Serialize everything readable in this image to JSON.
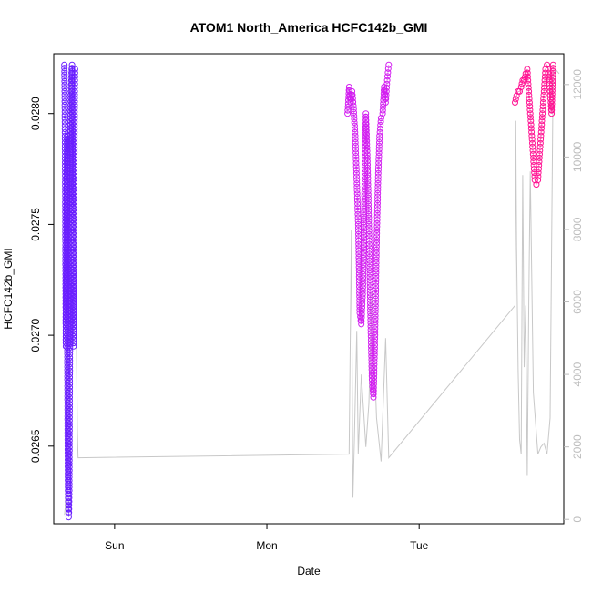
{
  "chart_data": {
    "type": "scatter",
    "title": "ATOM1 North_America HCFC142b_GMI",
    "xlabel": "Date",
    "ylabel": "HCFC142b_GMI",
    "x_unit": "days since start of Sun",
    "xlim": [
      -0.4,
      2.95
    ],
    "ylim": [
      0.02615,
      0.02827
    ],
    "y2lim": [
      -120,
      12850
    ],
    "x_ticks": [
      {
        "label": "Sun",
        "value": 0
      },
      {
        "label": "Mon",
        "value": 1
      },
      {
        "label": "Tue",
        "value": 2
      }
    ],
    "y_ticks": [
      {
        "label": "0.0265",
        "value": 0.0265
      },
      {
        "label": "0.0270",
        "value": 0.027
      },
      {
        "label": "0.0275",
        "value": 0.0275
      },
      {
        "label": "0.0280",
        "value": 0.028
      }
    ],
    "y2_ticks": [
      {
        "label": "0",
        "value": 0
      },
      {
        "label": "2000",
        "value": 2000
      },
      {
        "label": "4000",
        "value": 4000
      },
      {
        "label": "6000",
        "value": 6000
      },
      {
        "label": "8000",
        "value": 8000
      },
      {
        "label": "10000",
        "value": 10000
      },
      {
        "label": "12000",
        "value": 12000
      }
    ],
    "grid": false,
    "legend": "none",
    "series": [
      {
        "color": "#6a1fff",
        "marker": "open-circle",
        "axis": "left",
        "x": [
          -0.33,
          -0.328,
          -0.326,
          -0.324,
          -0.322,
          -0.32,
          -0.318,
          -0.316,
          -0.314,
          -0.312,
          -0.31,
          -0.308,
          -0.306,
          -0.304,
          -0.302,
          -0.3,
          -0.298,
          -0.296,
          -0.294,
          -0.292,
          -0.29,
          -0.288,
          -0.286,
          -0.284,
          -0.282,
          -0.28,
          -0.278,
          -0.276,
          -0.274,
          -0.272,
          -0.27,
          -0.268,
          -0.266,
          -0.264,
          -0.262,
          -0.26
        ],
        "y": [
          0.02822,
          0.0281,
          0.0279,
          0.0276,
          0.0272,
          0.02695,
          0.0271,
          0.0274,
          0.0277,
          0.0279,
          0.0268,
          0.0265,
          0.0263,
          0.02625,
          0.02618,
          0.0262,
          0.0263,
          0.0266,
          0.0269,
          0.0272,
          0.0276,
          0.02795,
          0.0281,
          0.02815,
          0.0282,
          0.02822,
          0.028,
          0.0277,
          0.0274,
          0.0271,
          0.02695,
          0.0272,
          0.0276,
          0.0279,
          0.0281,
          0.0282
        ]
      },
      {
        "color": "#d21ff0",
        "marker": "open-circle",
        "axis": "left",
        "x": [
          1.53,
          1.54,
          1.55,
          1.56,
          1.57,
          1.58,
          1.59,
          1.6,
          1.61,
          1.62,
          1.63,
          1.64,
          1.65,
          1.66,
          1.67,
          1.68,
          1.69,
          1.7,
          1.71,
          1.72,
          1.73,
          1.74,
          1.75,
          1.76,
          1.77,
          1.78,
          1.79,
          1.8
        ],
        "y": [
          0.028,
          0.02812,
          0.02805,
          0.0281,
          0.02802,
          0.0279,
          0.0277,
          0.0275,
          0.0271,
          0.02705,
          0.0272,
          0.0276,
          0.028,
          0.0278,
          0.0275,
          0.0271,
          0.0268,
          0.02672,
          0.027,
          0.0274,
          0.0277,
          0.0279,
          0.02798,
          0.028,
          0.02812,
          0.02805,
          0.02815,
          0.02822
        ]
      },
      {
        "color": "#ff1493",
        "marker": "open-circle",
        "axis": "left",
        "x": [
          2.63,
          2.64,
          2.65,
          2.66,
          2.67,
          2.68,
          2.69,
          2.7,
          2.71,
          2.72,
          2.73,
          2.74,
          2.75,
          2.76,
          2.77,
          2.78,
          2.79,
          2.8,
          2.81,
          2.82,
          2.83,
          2.84,
          2.85,
          2.86,
          2.87,
          2.88
        ],
        "y": [
          0.02805,
          0.02808,
          0.0281,
          0.0281,
          0.02812,
          0.02815,
          0.02815,
          0.02818,
          0.0282,
          0.0281,
          0.028,
          0.0279,
          0.0278,
          0.0277,
          0.02768,
          0.0277,
          0.0278,
          0.0279,
          0.028,
          0.0281,
          0.0282,
          0.02822,
          0.0282,
          0.0281,
          0.028,
          0.02822
        ]
      },
      {
        "color": "#c8c8c8",
        "marker": "line",
        "axis": "right",
        "x": [
          -0.33,
          -0.325,
          -0.32,
          -0.315,
          -0.31,
          -0.3,
          -0.295,
          -0.29,
          -0.28,
          -0.27,
          -0.265,
          -0.26,
          -0.255,
          -0.25,
          -0.245,
          -0.24,
          1.54,
          1.555,
          1.565,
          1.575,
          1.59,
          1.6,
          1.62,
          1.65,
          1.67,
          1.69,
          1.72,
          1.75,
          1.78,
          1.8,
          2.63,
          2.635,
          2.64,
          2.65,
          2.66,
          2.67,
          2.68,
          2.69,
          2.7,
          2.71,
          2.72,
          2.73,
          2.75,
          2.78,
          2.8,
          2.82,
          2.84,
          2.86,
          2.88,
          2.9,
          2.92
        ],
        "y": [
          100,
          300,
          1000,
          3000,
          6000,
          9000,
          11000,
          12000,
          12300,
          12000,
          11200,
          9500,
          7000,
          4500,
          2500,
          1700,
          1800,
          8000,
          600,
          2200,
          5200,
          1800,
          4000,
          2000,
          3200,
          6300,
          2800,
          1600,
          5000,
          1700,
          5900,
          11000,
          7500,
          4100,
          2200,
          1800,
          9500,
          4200,
          5900,
          1200,
          6000,
          9600,
          3500,
          1800,
          2000,
          2100,
          1800,
          2800,
          12300,
          12400,
          12300
        ]
      }
    ]
  }
}
